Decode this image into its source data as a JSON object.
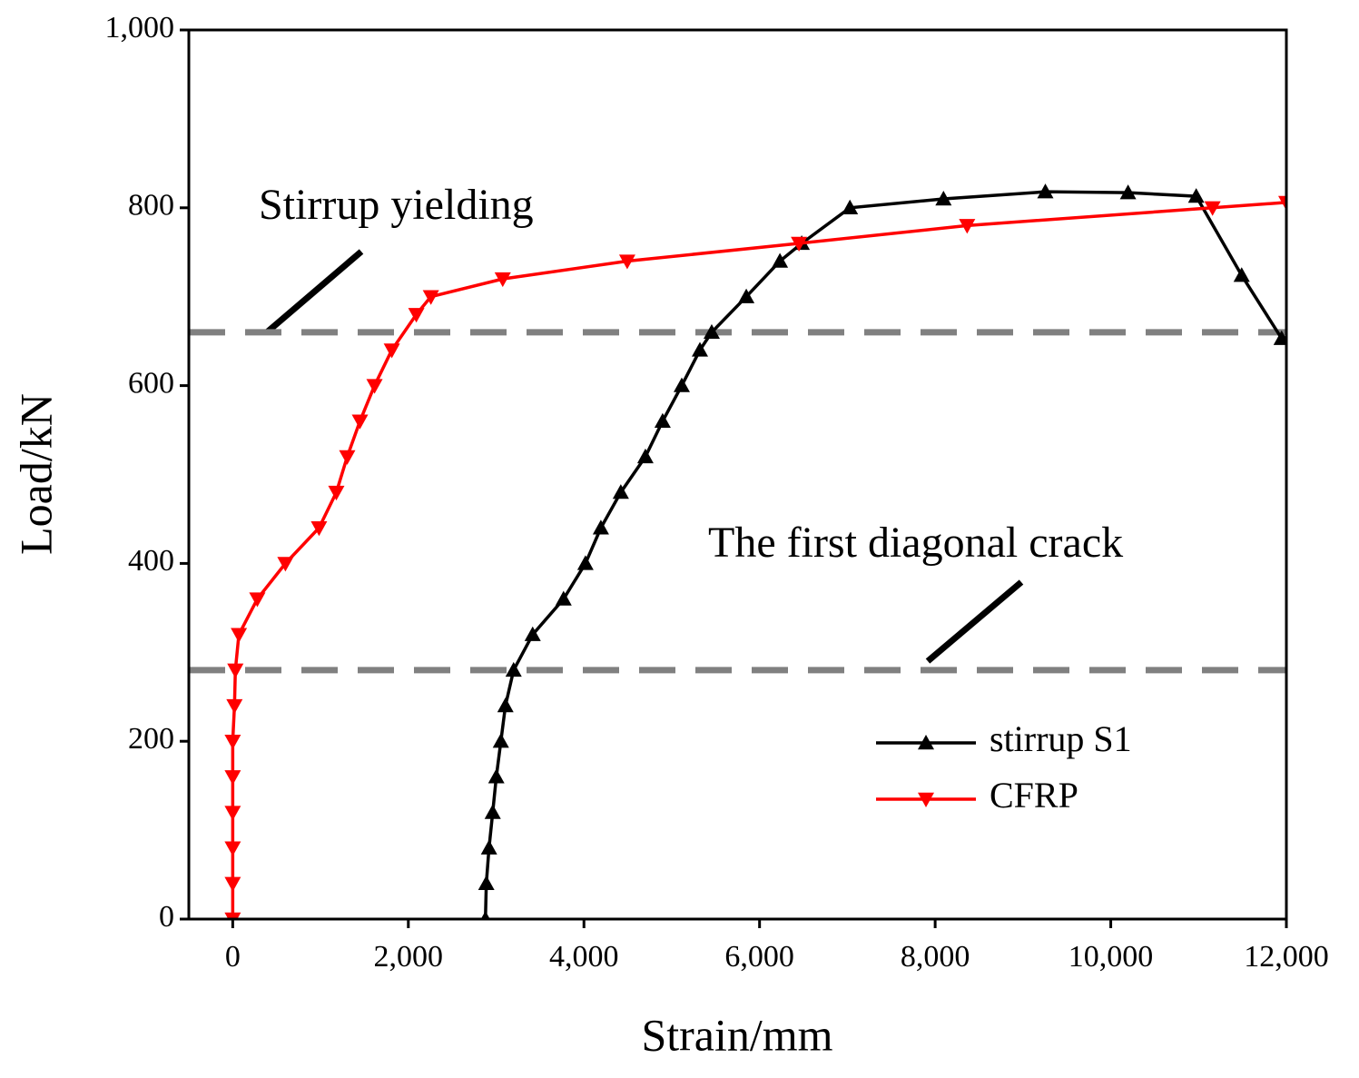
{
  "chart_data": {
    "type": "line",
    "x_label": "Strain/mm",
    "y_label": "Load/kN",
    "annotations": [
      "Stirrup yielding",
      "The first diagonal crack"
    ],
    "xlim": [
      -500,
      12000
    ],
    "ylim": [
      0,
      1000
    ],
    "xticks": [
      0,
      {
        "value": 2000,
        "label": "2,000"
      },
      {
        "value": 4000,
        "label": "4,000"
      },
      {
        "value": 6000,
        "label": "6,000"
      },
      {
        "value": 8000,
        "label": "8,000"
      },
      {
        "value": 10000,
        "label": "10,000"
      },
      {
        "value": 12000,
        "label": "12,000"
      }
    ],
    "yticks": [
      0,
      200,
      400,
      600,
      800,
      {
        "value": 1000,
        "label": "1,000"
      }
    ],
    "reference_lines": [
      660,
      280
    ],
    "reference_color": "#808080",
    "legend": "lower right",
    "series": [
      {
        "name": "stirrup S1",
        "color": "#000000",
        "marker": "triangle-up",
        "x": [
          2878,
          2888,
          2919,
          2961,
          3002,
          3054,
          3106,
          3199,
          3416,
          3768,
          4017,
          4193,
          4420,
          4700,
          4896,
          5114,
          5321,
          5455,
          5849,
          6232,
          6480,
          7029,
          8095,
          9255,
          10197,
          10973,
          11491,
          11946
        ],
        "values": [
          0,
          40,
          80,
          120,
          160,
          200,
          240,
          280,
          320,
          360,
          400,
          440,
          480,
          520,
          560,
          600,
          640,
          660,
          700,
          740,
          760,
          800,
          810,
          818,
          817,
          813,
          724,
          653
        ]
      },
      {
        "name": "CFRP",
        "color": "#ff0000",
        "marker": "triangle-down",
        "x": [
          0,
          0,
          0,
          0,
          0,
          0,
          20,
          30,
          70,
          280,
          600,
          983,
          1180,
          1304,
          1449,
          1615,
          1812,
          2091,
          2257,
          3075,
          4493,
          6449,
          8364,
          11159,
          12000
        ],
        "values": [
          0,
          40,
          80,
          120,
          160,
          200,
          240,
          280,
          320,
          360,
          400,
          440,
          480,
          520,
          560,
          600,
          640,
          680,
          700,
          720,
          740,
          760,
          780,
          800,
          806
        ]
      }
    ]
  }
}
